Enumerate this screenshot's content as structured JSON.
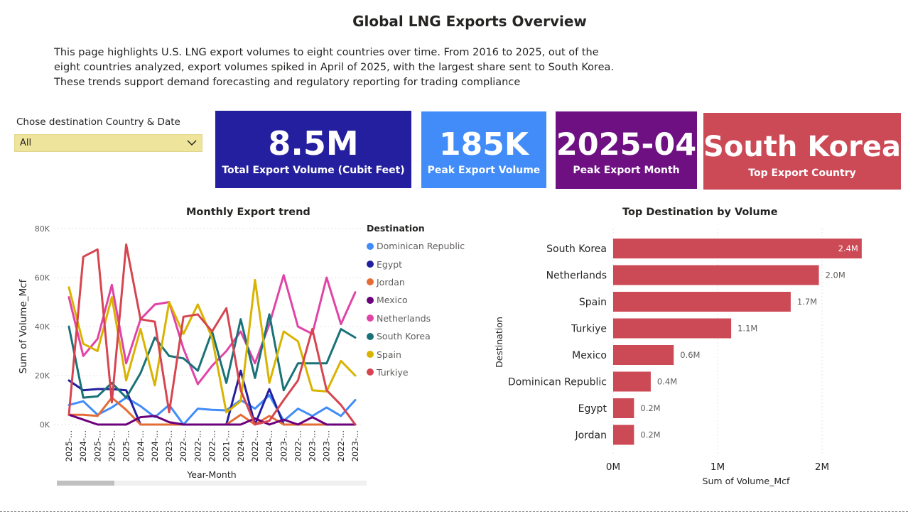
{
  "page": {
    "title": "Global LNG Exports Overview",
    "intro_lines": [
      "This page highlights U.S. LNG export volumes to eight countries over time. From 2016 to 2025, out of the",
      "eight countries analyzed, export volumes spiked in April of 2025, with the largest share sent to South Korea.",
      "These trends support demand forecasting and regulatory reporting for trading compliance"
    ]
  },
  "slicer": {
    "label": "Chose destination Country & Date",
    "value": "All",
    "icon": "chevron-down-icon",
    "color": "#eee49b"
  },
  "cards": [
    {
      "value": "8.5M",
      "label": "Total Export Volume (Cubit Feet)",
      "color": "#231f9e"
    },
    {
      "value": "185K",
      "label": "Peak Export Volume",
      "color": "#418cf8"
    },
    {
      "value": "2025-04",
      "label": "Peak Export Month",
      "color": "#6e0f82"
    },
    {
      "value": "South Korea",
      "label": "Top Export Country",
      "color": "#cc4956"
    }
  ],
  "chart_data": [
    {
      "type": "line",
      "title": "Monthly Export trend",
      "xlabel": "Year-Month",
      "ylabel": "Sum of Volume_Mcf",
      "ylim": [
        0,
        80000
      ],
      "yticks": [
        "0K",
        "20K",
        "40K",
        "60K",
        "80K"
      ],
      "grid": true,
      "legend": {
        "title": "Destination",
        "position": "right"
      },
      "categories": [
        "2025-...",
        "2024-...",
        "2025-...",
        "2025-...",
        "2025-...",
        "2024-...",
        "2024-...",
        "2023-...",
        "2022-...",
        "2022-...",
        "2022-...",
        "2021-...",
        "2024-...",
        "2022-...",
        "2024-...",
        "2023-...",
        "2022-...",
        "2023-...",
        "2023-...",
        "2022-...",
        "2023-..."
      ],
      "series": [
        {
          "name": "Dominican Republic",
          "color": "#418cf8",
          "values": [
            8000,
            9500,
            4000,
            7000,
            11000,
            7500,
            3000,
            8000,
            0,
            6500,
            6000,
            5800,
            10000,
            6500,
            12000,
            1500,
            6500,
            3500,
            7000,
            3500,
            10000
          ]
        },
        {
          "name": "Egypt",
          "color": "#231f9e",
          "values": [
            18000,
            14000,
            14500,
            14500,
            14000,
            0,
            0,
            0,
            0,
            0,
            0,
            0,
            22000,
            0,
            14500,
            0,
            0,
            0,
            0,
            0,
            0
          ]
        },
        {
          "name": "Jordan",
          "color": "#e66c37",
          "values": [
            4000,
            4000,
            3500,
            11000,
            6000,
            0,
            0,
            0,
            0,
            0,
            0,
            0,
            4000,
            0,
            3500,
            0,
            0,
            0,
            0,
            0,
            0
          ]
        },
        {
          "name": "Mexico",
          "color": "#6b007b",
          "values": [
            4000,
            2000,
            0,
            0,
            0,
            3000,
            3500,
            1000,
            0,
            0,
            0,
            0,
            0,
            2500,
            0,
            2000,
            0,
            3000,
            0,
            0,
            0
          ]
        },
        {
          "name": "Netherlands",
          "color": "#e044a7",
          "values": [
            52000,
            28000,
            35000,
            57000,
            25000,
            43000,
            49000,
            50000,
            31000,
            16500,
            24000,
            30000,
            38000,
            25000,
            41000,
            61000,
            40000,
            37000,
            60000,
            41000,
            54000
          ]
        },
        {
          "name": "South Korea",
          "color": "#197278",
          "values": [
            40000,
            11000,
            11500,
            17000,
            11000,
            21000,
            35500,
            28000,
            27000,
            22000,
            38000,
            17000,
            43000,
            19000,
            45000,
            14000,
            25000,
            25000,
            25000,
            39000,
            35500
          ]
        },
        {
          "name": "Spain",
          "color": "#d9b300",
          "values": [
            56000,
            33000,
            30000,
            52000,
            18000,
            39000,
            16000,
            50000,
            37000,
            49000,
            35500,
            5000,
            9500,
            59000,
            17000,
            38000,
            34000,
            14000,
            13500,
            26000,
            20000
          ]
        },
        {
          "name": "Turkiye",
          "color": "#d64550",
          "values": [
            4000,
            68500,
            71500,
            9000,
            73500,
            43000,
            42000,
            5000,
            44000,
            45000,
            38000,
            47500,
            14000,
            0,
            1500,
            10000,
            18000,
            39000,
            14000,
            8000,
            0
          ]
        }
      ]
    },
    {
      "type": "bar",
      "orientation": "horizontal",
      "title": "Top Destination by Volume",
      "xlabel": "Sum of Volume_Mcf",
      "ylabel": "Destination",
      "xlim": [
        0,
        2400000
      ],
      "xticks": [
        "0M",
        "1M",
        "2M"
      ],
      "color": "#cc4956",
      "categories": [
        "South Korea",
        "Netherlands",
        "Spain",
        "Turkiye",
        "Mexico",
        "Dominican Republic",
        "Egypt",
        "Jordan"
      ],
      "values": [
        2380000,
        1970000,
        1700000,
        1130000,
        580000,
        360000,
        200000,
        200000
      ],
      "data_labels": [
        "2.4M",
        "2.0M",
        "1.7M",
        "1.1M",
        "0.6M",
        "0.4M",
        "0.2M",
        "0.2M"
      ]
    }
  ]
}
